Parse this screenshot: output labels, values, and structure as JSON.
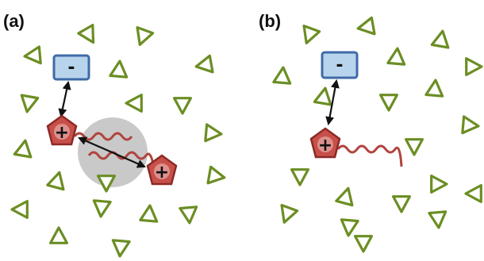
{
  "panels": [
    {
      "label": "(a)"
    },
    {
      "label": "(b)"
    }
  ],
  "symbols": {
    "negative_charge": "-",
    "positive_charge": "+"
  },
  "colors": {
    "triangle_stroke": "#6b8e23",
    "triangle_fill": "#ffffff",
    "negative_box_fill": "#b8d4ec",
    "negative_box_stroke": "#3f6aa8",
    "positive_fill": "#c8504a",
    "positive_stroke": "#8b2a26",
    "tail_color": "#b0443e",
    "halo_fill": "#c9c9c9",
    "arrow_color": "#111111"
  },
  "icons": {
    "triangle": "crowder-triangle-icon",
    "negative": "negative-charge-box",
    "positive": "positive-charge-pentagon"
  }
}
